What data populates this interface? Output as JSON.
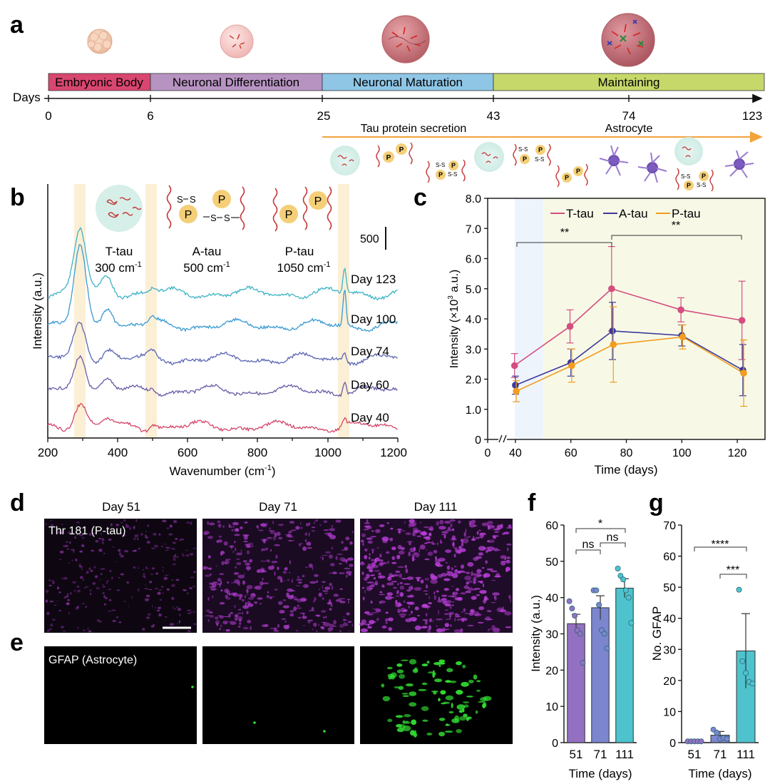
{
  "panel_labels": [
    "a",
    "b",
    "c",
    "d",
    "e",
    "f",
    "g"
  ],
  "colors": {
    "t_tau": "#d44e80",
    "a_tau": "#3b3a9a",
    "p_tau": "#f39c1e",
    "bar_f": [
      "#9370c2",
      "#7b86cf",
      "#4ec3cd"
    ],
    "bar_g": [
      "#9370c2",
      "#7b86cf",
      "#4ec3cd"
    ],
    "stage_colors": [
      "#d9466f",
      "#b793c2",
      "#8fc6e6",
      "#c6d86a"
    ],
    "spectra_colors": [
      "#3eb4c4",
      "#3a9ad1",
      "#5b66b4",
      "#6a5aa8",
      "#d4466a"
    ],
    "stain_ptau": "#c040e0",
    "stain_gfap": "#33dd33",
    "arrow_orange": "#f3a33c"
  },
  "panel_a": {
    "stages": [
      "Embryonic Body",
      "Neuronal Differentiation",
      "Neuronal Maturation",
      "Maintaining"
    ],
    "days_label": "Days",
    "day_ticks": [
      "0",
      "6",
      "25",
      "43",
      "74",
      "123"
    ],
    "tau_secretion": "Tau protein secretion",
    "astrocyte": "Astrocyte",
    "ss_label": "S-S",
    "p_label": "P"
  },
  "panel_b": {
    "xlabel": "Wavenumber (cm",
    "xlabel_sup": "-1",
    "xlabel_tail": ")",
    "ylabel": "Intensity (a.u.)",
    "x_ticks": [
      "200",
      "400",
      "600",
      "800",
      "1000",
      "1200"
    ],
    "scale_bar": "500",
    "spectra_days": [
      "Day 123",
      "Day 100",
      "Day 74",
      "Day 60",
      "Day 40"
    ],
    "bands": [
      {
        "name": "T-tau",
        "wavenumber": "300 cm",
        "sup": "-1"
      },
      {
        "name": "A-tau",
        "wavenumber": "500 cm",
        "sup": "-1"
      },
      {
        "name": "P-tau",
        "wavenumber": "1050 cm",
        "sup": "-1"
      }
    ],
    "band_labels": [
      "S",
      "S",
      "S",
      "S",
      "P",
      "P",
      "P",
      "P"
    ]
  },
  "chart_data": [
    {
      "panel": "c",
      "type": "line",
      "xlabel": "Time (days)",
      "ylabel": "Intensity (×10",
      "ylabel_sup": "3",
      "ylabel_tail": " a.u.)",
      "x_ticks": [
        "0",
        "40",
        "60",
        "80",
        "100",
        "120"
      ],
      "y_ticks": [
        "0",
        "1.0",
        "2.0",
        "3.0",
        "4.0",
        "5.0",
        "6.0",
        "7.0",
        "8.0"
      ],
      "xlim": [
        30,
        130
      ],
      "ylim": [
        0,
        8
      ],
      "x": [
        40,
        60,
        75,
        100,
        122
      ],
      "series": [
        {
          "name": "T-tau",
          "values": [
            2.45,
            3.75,
            5.0,
            4.3,
            3.95
          ],
          "err": [
            0.4,
            0.55,
            1.4,
            0.4,
            1.3
          ]
        },
        {
          "name": "A-tau",
          "values": [
            1.8,
            2.55,
            3.6,
            3.45,
            2.3
          ],
          "err": [
            0.3,
            0.45,
            0.95,
            0.35,
            0.85
          ]
        },
        {
          "name": "P-tau",
          "values": [
            1.6,
            2.45,
            3.15,
            3.4,
            2.2
          ],
          "err": [
            0.35,
            0.55,
            1.25,
            0.4,
            1.1
          ]
        }
      ],
      "significance": [
        "**",
        "**"
      ]
    },
    {
      "panel": "f",
      "type": "bar",
      "categories": [
        "51",
        "71",
        "111"
      ],
      "values": [
        32.8,
        37.2,
        42.6
      ],
      "err": [
        2.6,
        3.3,
        2.6
      ],
      "points": [
        [
          39,
          37,
          35,
          31,
          30,
          22
        ],
        [
          42,
          42,
          38,
          31,
          30,
          26
        ],
        [
          48,
          46,
          45,
          42,
          40,
          33
        ]
      ],
      "xlabel": "Time (days)",
      "ylabel": "Intensity (a.u.)",
      "y_ticks": [
        "0",
        "10",
        "20",
        "30",
        "40",
        "50",
        "60"
      ],
      "ylim": [
        0,
        60
      ],
      "significance": [
        "*",
        "ns",
        "ns"
      ]
    },
    {
      "panel": "g",
      "type": "bar",
      "categories": [
        "51",
        "71",
        "111"
      ],
      "values": [
        0.4,
        2.4,
        29.5
      ],
      "err": [
        0.3,
        1.2,
        12.0
      ],
      "points": [
        [
          0.4,
          0.4,
          0.4,
          0.4,
          0.4
        ],
        [
          4.2,
          3.2,
          1.2,
          1.5,
          1.2
        ],
        [
          49.2,
          26.2,
          22.4,
          19.5,
          19.0
        ]
      ],
      "xlabel": "Time (days)",
      "ylabel": "No. GFAP",
      "y_ticks": [
        "0",
        "10",
        "20",
        "30",
        "40",
        "50",
        "60",
        "70"
      ],
      "ylim": [
        0,
        70
      ],
      "significance": [
        "****",
        "***"
      ]
    }
  ],
  "panel_d": {
    "titles": [
      "Day 51",
      "Day 71",
      "Day 111"
    ],
    "label": "Thr 181 (P-tau)"
  },
  "panel_e": {
    "label": "GFAP (Astrocyte)"
  }
}
